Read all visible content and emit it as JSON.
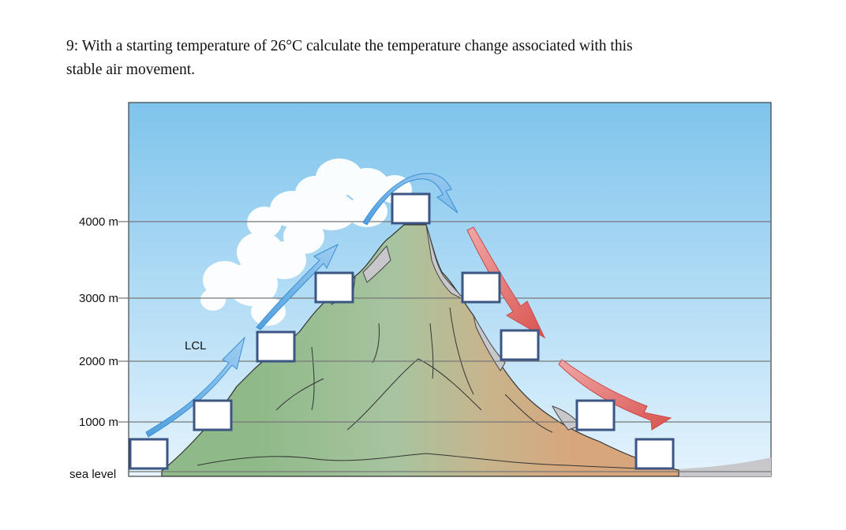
{
  "question": {
    "line1": "9: With a starting temperature of 26°C calculate the temperature change associated with this",
    "line2": "stable air movement."
  },
  "diagram": {
    "altitude_labels": [
      "4000 m",
      "3000 m",
      "2000 m",
      "1000 m",
      "sea level"
    ],
    "lcl_label": "LCL",
    "answer_boxes": [
      {
        "name": "start-sea-level",
        "value": ""
      },
      {
        "name": "windward-1000m",
        "value": ""
      },
      {
        "name": "windward-2000m-lcl",
        "value": ""
      },
      {
        "name": "windward-3000m",
        "value": ""
      },
      {
        "name": "summit-4000m",
        "value": ""
      },
      {
        "name": "leeward-3000m",
        "value": ""
      },
      {
        "name": "leeward-2000m",
        "value": ""
      },
      {
        "name": "leeward-1000m",
        "value": ""
      },
      {
        "name": "end-sea-level",
        "value": ""
      }
    ],
    "colors": {
      "sky_top": "#7fc4ec",
      "sky_bottom": "#e4f3fc",
      "windward_slope": "#8fb989",
      "leeward_slope": "#d2a880",
      "rock": "#c4c4c8",
      "ascending_arrow": "#5aa6e0",
      "descending_arrow": "#e06a6a",
      "box_border": "#3c5683"
    }
  }
}
